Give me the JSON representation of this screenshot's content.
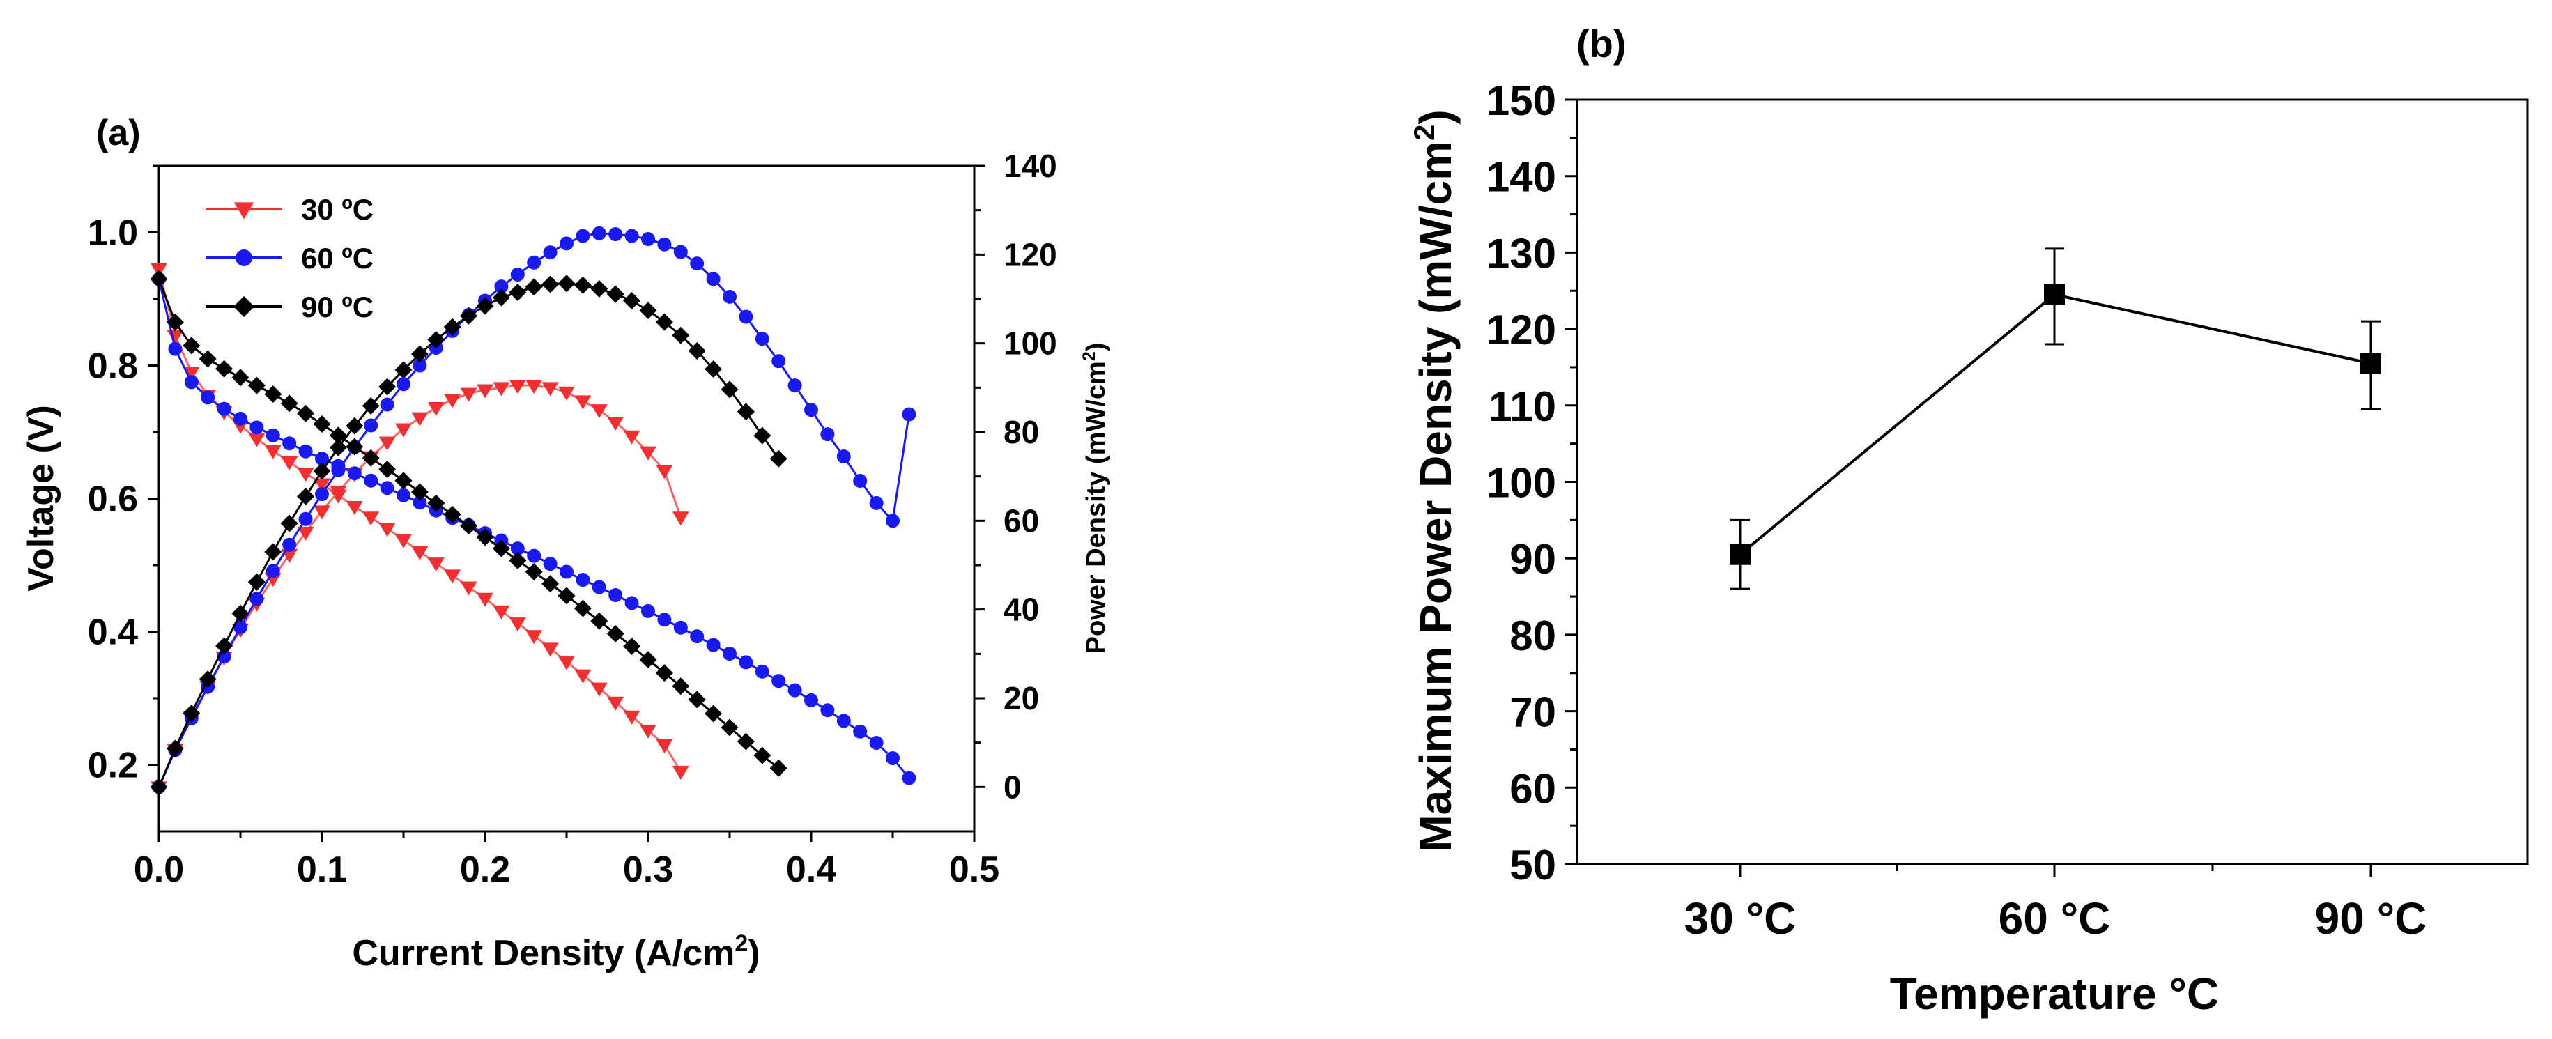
{
  "colors": {
    "red": "#f03030",
    "blue": "#1a1af0",
    "black": "#000000"
  },
  "chart_data": [
    {
      "panel": "(a)",
      "type": "line",
      "xlabel": "Current Density (A/cm2)",
      "xlabel_main": "Current Density (A/cm",
      "xlabel_sup": "2",
      "xlabel_end": ")",
      "ylabel": "Voltage (V)",
      "y2label": "Power Density (mW/cm2)",
      "y2label_main": "Power Density (mW/cm",
      "y2label_sup": "2",
      "y2label_end": ")",
      "xlim": [
        0,
        0.5
      ],
      "ylim": [
        0.1,
        1.1
      ],
      "y2lim": [
        -10,
        140
      ],
      "x_ticks": [
        "0.0",
        "0.1",
        "0.2",
        "0.3",
        "0.4",
        "0.5"
      ],
      "y_ticks": [
        "0.2",
        "0.4",
        "0.6",
        "0.8",
        "1.0"
      ],
      "y2_ticks": [
        "0",
        "20",
        "40",
        "60",
        "80",
        "100",
        "120",
        "140"
      ],
      "legend": [
        {
          "label": "30 ºC",
          "color": "#f03030",
          "marker": "triangle-down"
        },
        {
          "label": "60 ºC",
          "color": "#1a1af0",
          "marker": "circle"
        },
        {
          "label": "90 ºC",
          "color": "#000000",
          "marker": "diamond"
        }
      ],
      "series": [
        {
          "name": "30 ºC voltage",
          "color": "#f03030",
          "marker": "triangle-down",
          "axis": "left",
          "x": [
            0,
            0.01,
            0.02,
            0.03,
            0.04,
            0.05,
            0.06,
            0.07,
            0.08,
            0.09,
            0.1,
            0.11,
            0.12,
            0.13,
            0.14,
            0.15,
            0.16,
            0.17,
            0.18,
            0.19,
            0.2,
            0.21,
            0.22,
            0.23,
            0.24,
            0.25,
            0.26,
            0.27,
            0.28,
            0.29,
            0.3,
            0.31,
            0.32
          ],
          "y": [
            0.945,
            0.845,
            0.79,
            0.755,
            0.73,
            0.71,
            0.69,
            0.672,
            0.655,
            0.638,
            0.622,
            0.605,
            0.588,
            0.572,
            0.555,
            0.538,
            0.52,
            0.503,
            0.485,
            0.467,
            0.45,
            0.431,
            0.413,
            0.394,
            0.375,
            0.355,
            0.335,
            0.315,
            0.294,
            0.273,
            0.252,
            0.23,
            0.19
          ]
        },
        {
          "name": "30 ºC power density",
          "color": "#f03030",
          "marker": "triangle-down",
          "axis": "right",
          "x": [
            0,
            0.01,
            0.02,
            0.03,
            0.04,
            0.05,
            0.06,
            0.07,
            0.08,
            0.09,
            0.1,
            0.11,
            0.12,
            0.13,
            0.14,
            0.15,
            0.16,
            0.17,
            0.18,
            0.19,
            0.2,
            0.21,
            0.22,
            0.23,
            0.24,
            0.25,
            0.26,
            0.27,
            0.28,
            0.29,
            0.3,
            0.31,
            0.32
          ],
          "y": [
            0,
            8.5,
            15.8,
            22.6,
            29.2,
            35.5,
            41.4,
            47,
            52.4,
            57.4,
            62.2,
            66.6,
            70.6,
            74.4,
            77.7,
            80.7,
            83.2,
            85.5,
            87.3,
            88.7,
            89.5,
            90,
            90.5,
            90.5,
            90,
            89,
            87,
            85,
            82.2,
            79.1,
            75.5,
            71.3,
            60.8
          ]
        },
        {
          "name": "60 ºC voltage",
          "color": "#1a1af0",
          "marker": "circle",
          "axis": "left",
          "x": [
            0,
            0.01,
            0.02,
            0.03,
            0.04,
            0.05,
            0.06,
            0.07,
            0.08,
            0.09,
            0.1,
            0.11,
            0.12,
            0.13,
            0.14,
            0.15,
            0.16,
            0.17,
            0.18,
            0.19,
            0.2,
            0.21,
            0.22,
            0.23,
            0.24,
            0.25,
            0.26,
            0.27,
            0.28,
            0.29,
            0.3,
            0.31,
            0.32,
            0.33,
            0.34,
            0.35,
            0.36,
            0.37,
            0.38,
            0.39,
            0.4,
            0.41,
            0.42,
            0.43,
            0.44,
            0.45,
            0.46
          ],
          "y": [
            0.93,
            0.825,
            0.775,
            0.752,
            0.735,
            0.72,
            0.707,
            0.695,
            0.683,
            0.671,
            0.66,
            0.649,
            0.638,
            0.627,
            0.616,
            0.605,
            0.594,
            0.582,
            0.571,
            0.56,
            0.548,
            0.537,
            0.525,
            0.514,
            0.502,
            0.49,
            0.478,
            0.467,
            0.455,
            0.443,
            0.431,
            0.418,
            0.406,
            0.393,
            0.38,
            0.367,
            0.354,
            0.34,
            0.326,
            0.312,
            0.297,
            0.282,
            0.266,
            0.25,
            0.233,
            0.21,
            0.18
          ]
        },
        {
          "name": "60 ºC power density",
          "color": "#1a1af0",
          "marker": "circle",
          "axis": "right",
          "x": [
            0,
            0.01,
            0.02,
            0.03,
            0.04,
            0.05,
            0.06,
            0.07,
            0.08,
            0.09,
            0.1,
            0.11,
            0.12,
            0.13,
            0.14,
            0.15,
            0.16,
            0.17,
            0.18,
            0.19,
            0.2,
            0.21,
            0.22,
            0.23,
            0.24,
            0.25,
            0.26,
            0.27,
            0.28,
            0.29,
            0.3,
            0.31,
            0.32,
            0.33,
            0.34,
            0.35,
            0.36,
            0.37,
            0.38,
            0.39,
            0.4,
            0.41,
            0.42,
            0.43,
            0.44,
            0.45,
            0.46
          ],
          "y": [
            0,
            8.3,
            15.5,
            22.6,
            29.4,
            36,
            42.4,
            48.7,
            54.6,
            60.4,
            66,
            71.4,
            76.6,
            81.5,
            86.2,
            90.8,
            95,
            99,
            102.8,
            106.4,
            109.6,
            112.8,
            115.5,
            118.2,
            120.5,
            122.5,
            124.2,
            124.8,
            124.6,
            124.2,
            123.5,
            122.3,
            120.6,
            118,
            114.5,
            110.5,
            106,
            101,
            96,
            90.5,
            85,
            79.5,
            74.5,
            69,
            64,
            60,
            84
          ]
        },
        {
          "name": "90 ºC voltage",
          "color": "#000000",
          "marker": "diamond",
          "axis": "left",
          "x": [
            0,
            0.01,
            0.02,
            0.03,
            0.04,
            0.05,
            0.06,
            0.07,
            0.08,
            0.09,
            0.1,
            0.11,
            0.12,
            0.13,
            0.14,
            0.15,
            0.16,
            0.17,
            0.18,
            0.19,
            0.2,
            0.21,
            0.22,
            0.23,
            0.24,
            0.25,
            0.26,
            0.27,
            0.28,
            0.29,
            0.3,
            0.31,
            0.32,
            0.33,
            0.34,
            0.35,
            0.36,
            0.37,
            0.38
          ],
          "y": [
            0.93,
            0.865,
            0.83,
            0.81,
            0.795,
            0.782,
            0.77,
            0.757,
            0.743,
            0.728,
            0.712,
            0.695,
            0.678,
            0.661,
            0.644,
            0.627,
            0.61,
            0.593,
            0.576,
            0.559,
            0.542,
            0.525,
            0.507,
            0.49,
            0.472,
            0.454,
            0.435,
            0.416,
            0.397,
            0.378,
            0.358,
            0.338,
            0.318,
            0.298,
            0.277,
            0.256,
            0.235,
            0.214,
            0.195
          ]
        },
        {
          "name": "90 ºC power density",
          "color": "#000000",
          "marker": "diamond",
          "axis": "right",
          "x": [
            0,
            0.01,
            0.02,
            0.03,
            0.04,
            0.05,
            0.06,
            0.07,
            0.08,
            0.09,
            0.1,
            0.11,
            0.12,
            0.13,
            0.14,
            0.15,
            0.16,
            0.17,
            0.18,
            0.19,
            0.2,
            0.21,
            0.22,
            0.23,
            0.24,
            0.25,
            0.26,
            0.27,
            0.28,
            0.29,
            0.3,
            0.31,
            0.32,
            0.33,
            0.34,
            0.35,
            0.36,
            0.37,
            0.38
          ],
          "y": [
            0,
            8.7,
            16.6,
            24.3,
            31.8,
            39.1,
            46.2,
            53,
            59.4,
            65.5,
            71.2,
            76.5,
            81.4,
            85.9,
            90.2,
            94,
            97.6,
            100.8,
            103.7,
            106.2,
            108.4,
            110.3,
            111.5,
            112.7,
            113.3,
            113.5,
            113.1,
            112.3,
            111.1,
            109.6,
            107.4,
            104.8,
            101.8,
            98.3,
            94.2,
            89.6,
            84.6,
            79.2,
            74
          ]
        }
      ]
    },
    {
      "panel": "(b)",
      "type": "line",
      "xlabel": "Temperature °C",
      "ylabel": "Maximum Power Density (mW/cm2)",
      "ylabel_main": "Maximum Power Density (mW/cm",
      "ylabel_sup": "2",
      "ylabel_end": ")",
      "categories": [
        "30 °C",
        "60 °C",
        "90 °C"
      ],
      "values": [
        90.5,
        124.5,
        115.5
      ],
      "error_upper": [
        95,
        130.5,
        121
      ],
      "error_lower": [
        86,
        118,
        109.5
      ],
      "ylim": [
        50,
        150
      ],
      "y_ticks": [
        "50",
        "60",
        "70",
        "80",
        "90",
        "100",
        "110",
        "120",
        "130",
        "140",
        "150"
      ],
      "marker": "square",
      "color": "#000000"
    }
  ]
}
